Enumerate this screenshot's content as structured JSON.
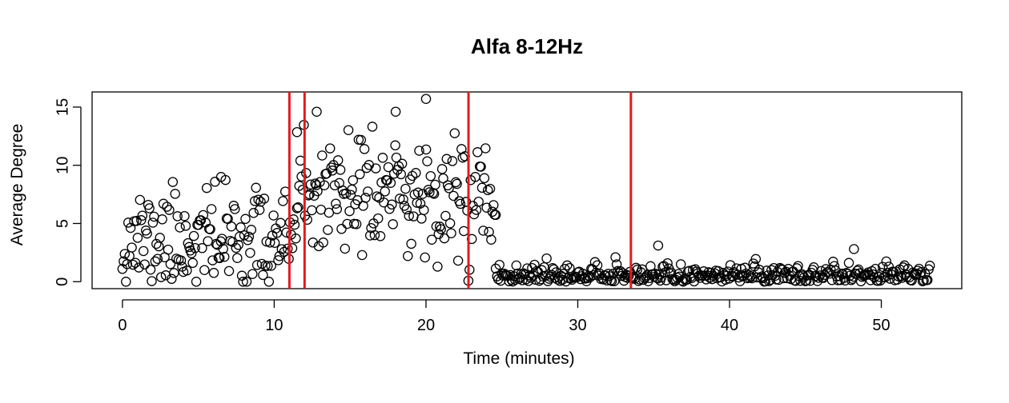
{
  "chart_data": {
    "type": "scatter",
    "title": "Alfa 8-12Hz",
    "xlabel": "Time (minutes)",
    "ylabel": "Average Degree",
    "xlim": [
      -2,
      55.3
    ],
    "ylim": [
      -0.6,
      16.3
    ],
    "x_ticks": [
      0,
      10,
      20,
      30,
      40,
      50
    ],
    "y_ticks": [
      0,
      5,
      10,
      15
    ],
    "grid": false,
    "legend": "none",
    "point_color": "#000000",
    "vline_color": "#e41a1c",
    "vlines": [
      11.0,
      12.0,
      22.8,
      33.5
    ],
    "segments": [
      {
        "x_start": 0.0,
        "x_end": 11.5,
        "n": 150,
        "mean": 3.6,
        "sd": 2.2,
        "min": 0.0,
        "max": 9.0,
        "seed": 11
      },
      {
        "x_start": 11.5,
        "x_end": 24.6,
        "n": 175,
        "mean": 7.3,
        "sd": 2.8,
        "min": 0.0,
        "max": 14.8,
        "seed": 23
      },
      {
        "x_start": 24.6,
        "x_end": 53.2,
        "n": 360,
        "mean": 0.55,
        "sd": 0.5,
        "min": 0.0,
        "max": 3.2,
        "seed": 37
      }
    ],
    "highlight_points": [
      {
        "x": 20.0,
        "y": 15.7
      },
      {
        "x": 12.8,
        "y": 14.6
      },
      {
        "x": 18.0,
        "y": 14.6
      },
      {
        "x": 6.5,
        "y": 9.0
      },
      {
        "x": 35.3,
        "y": 3.1
      },
      {
        "x": 48.2,
        "y": 2.8
      }
    ]
  }
}
